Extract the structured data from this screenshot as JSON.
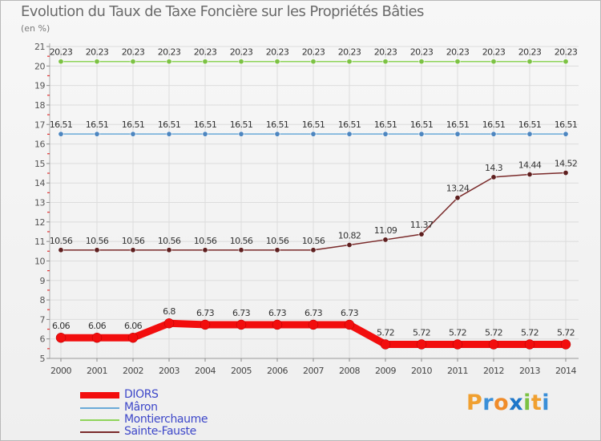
{
  "title": "Evolution du Taux de Taxe Foncière sur les Propriétés Bâties",
  "subtitle": "(en %)",
  "logo": {
    "letters": [
      "P",
      "r",
      "o",
      "x",
      "i",
      "t",
      "i"
    ],
    "colors": [
      "#f0a030",
      "#3a8fd8",
      "#f08c2a",
      "#1f77c9",
      "#7cc243",
      "#f0a030",
      "#3a8fd8"
    ]
  },
  "chart_data": {
    "type": "line",
    "title": "Evolution du Taux de Taxe Foncière sur les Propriétés Bâties",
    "ylabel": "(en %)",
    "xlabel": "",
    "ylim": [
      5,
      21
    ],
    "yticks": [
      "5",
      "6",
      "7",
      "8",
      "9",
      "10",
      "11",
      "12",
      "13",
      "14",
      "15",
      "16",
      "17",
      "18",
      "19",
      "20",
      "21"
    ],
    "categories": [
      "2000",
      "2001",
      "2002",
      "2003",
      "2004",
      "2005",
      "2006",
      "2007",
      "2008",
      "2009",
      "2010",
      "2011",
      "2012",
      "2013",
      "2014"
    ],
    "series": [
      {
        "name": "Montierchaume",
        "color": "#8fd45a",
        "marker": "#7cc243",
        "values": [
          20.23,
          20.23,
          20.23,
          20.23,
          20.23,
          20.23,
          20.23,
          20.23,
          20.23,
          20.23,
          20.23,
          20.23,
          20.23,
          20.23,
          20.23
        ],
        "labels": [
          "20.23",
          "20.23",
          "20.23",
          "20.23",
          "20.23",
          "20.23",
          "20.23",
          "20.23",
          "20.23",
          "20.23",
          "20.23",
          "20.23",
          "20.23",
          "20.23",
          "20.23"
        ]
      },
      {
        "name": "Mâron",
        "color": "#6aaad8",
        "marker": "#4d86c0",
        "values": [
          16.51,
          16.51,
          16.51,
          16.51,
          16.51,
          16.51,
          16.51,
          16.51,
          16.51,
          16.51,
          16.51,
          16.51,
          16.51,
          16.51,
          16.51
        ],
        "labels": [
          "16.51",
          "16.51",
          "16.51",
          "16.51",
          "16.51",
          "16.51",
          "16.51",
          "16.51",
          "16.51",
          "16.51",
          "16.51",
          "16.51",
          "16.51",
          "16.51",
          "16.51"
        ]
      },
      {
        "name": "Sainte-Fauste",
        "color": "#7a2a2a",
        "marker": "#5e1f1f",
        "values": [
          10.56,
          10.56,
          10.56,
          10.56,
          10.56,
          10.56,
          10.56,
          10.56,
          10.82,
          11.09,
          11.37,
          13.24,
          14.3,
          14.44,
          14.52
        ],
        "labels": [
          "10.56",
          "10.56",
          "10.56",
          "10.56",
          "10.56",
          "10.56",
          "10.56",
          "10.56",
          "10.82",
          "11.09",
          "11.37",
          "13.24",
          "14.3",
          "14.44",
          "14.52"
        ]
      },
      {
        "name": "DIORS",
        "color": "#f20d0d",
        "marker": "#f20d0d",
        "values": [
          6.06,
          6.06,
          6.06,
          6.8,
          6.73,
          6.73,
          6.73,
          6.73,
          6.73,
          5.72,
          5.72,
          5.72,
          5.72,
          5.72,
          5.72
        ],
        "labels": [
          "6.06",
          "6.06",
          "6.06",
          "6.8",
          "6.73",
          "6.73",
          "6.73",
          "6.73",
          "6.73",
          "5.72",
          "5.72",
          "5.72",
          "5.72",
          "5.72",
          "5.72"
        ]
      }
    ],
    "legend": [
      "DIORS",
      "Mâron",
      "Montierchaume",
      "Sainte-Fauste"
    ]
  }
}
